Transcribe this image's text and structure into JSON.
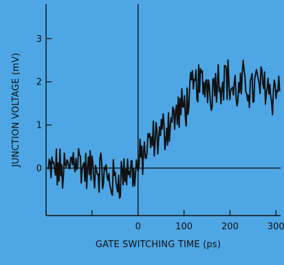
{
  "chart_data": {
    "type": "line",
    "title": "",
    "xlabel": "GATE SWITCHING TIME (ps)",
    "ylabel": "JUNCTION VOLTAGE (mV)",
    "xlim": [
      -200,
      310
    ],
    "ylim": [
      -1.1,
      3.8
    ],
    "x_ticks": [
      -200,
      -100,
      0,
      100,
      200,
      300
    ],
    "x_tick_labels": [
      "",
      "",
      "0",
      "100",
      "200",
      "300"
    ],
    "y_ticks": [
      0,
      1,
      2,
      3
    ],
    "y_tick_labels": [
      "0",
      "1",
      "2",
      "3"
    ],
    "grid": false,
    "line_color": "#111111",
    "background_color": "#4ea6e4",
    "series": [
      {
        "x": [
          -195,
          -180,
          -165,
          -150,
          -140,
          -130,
          -120,
          -110,
          -100,
          -90,
          -80,
          -70,
          -60,
          -50,
          -40,
          -30,
          -20,
          -10,
          0,
          10,
          20,
          30,
          40,
          50,
          60,
          70,
          80,
          90,
          100,
          110,
          120,
          130,
          140,
          150,
          160,
          170,
          180,
          190,
          200,
          210,
          220,
          230,
          240,
          250,
          260,
          270,
          280,
          290,
          300,
          308
        ],
        "values": [
          -0.1,
          0.0,
          -0.1,
          0.0,
          0.3,
          0.2,
          0.0,
          -0.1,
          0.0,
          0.0,
          -0.1,
          -0.2,
          -0.3,
          -0.3,
          -0.2,
          -0.1,
          0.0,
          -0.1,
          0.0,
          0.3,
          0.4,
          0.6,
          0.7,
          0.8,
          0.9,
          1.1,
          1.2,
          1.3,
          1.4,
          1.6,
          1.8,
          2.0,
          1.9,
          2.0,
          1.8,
          2.1,
          2.0,
          2.2,
          1.9,
          1.8,
          1.7,
          2.0,
          1.9,
          1.8,
          2.0,
          1.9,
          2.0,
          1.7,
          1.9,
          1.8
        ]
      }
    ]
  }
}
